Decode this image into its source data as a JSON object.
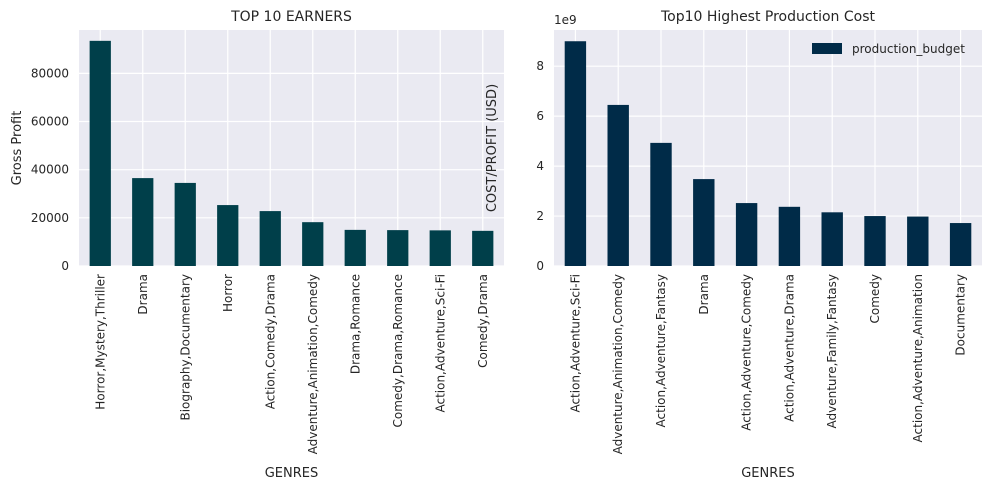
{
  "chart_data": [
    {
      "type": "bar",
      "title": "TOP 10 EARNERS",
      "xlabel": "GENRES",
      "ylabel": "Gross Profit",
      "categories": [
        "Horror,Mystery,Thriller",
        "Drama",
        "Biography,Documentary",
        "Horror",
        "Action,Comedy,Drama",
        "Adventure,Animation,Comedy",
        "Drama,Romance",
        "Comedy,Drama,Romance",
        "Action,Adventure,Sci-Fi",
        "Comedy,Drama"
      ],
      "values": [
        93500,
        36500,
        34500,
        25300,
        22800,
        18200,
        15000,
        14900,
        14800,
        14600
      ],
      "ylim": [
        0,
        98000
      ],
      "yticks": [
        0,
        20000,
        40000,
        60000,
        80000
      ],
      "ytick_labels": [
        "0",
        "20000",
        "40000",
        "60000",
        "80000"
      ],
      "color": "#003f4a",
      "grid": true,
      "legend": null
    },
    {
      "type": "bar",
      "title": "Top10 Highest Production Cost",
      "xlabel": "GENRES",
      "ylabel": "COST/PROFIT (USD)",
      "offset_text": "1e9",
      "categories": [
        "Action,Adventure,Sci-Fi",
        "Adventure,Animation,Comedy",
        "Action,Adventure,Fantasy",
        "Drama",
        "Action,Adventure,Comedy",
        "Action,Adventure,Drama",
        "Adventure,Family,Fantasy",
        "Comedy",
        "Action,Adventure,Animation",
        "Documentary"
      ],
      "series": [
        {
          "name": "production_budget",
          "values": [
            9.0,
            6.45,
            4.93,
            3.48,
            2.52,
            2.37,
            2.15,
            2.0,
            1.98,
            1.72
          ]
        }
      ],
      "ylim": [
        0,
        9.45
      ],
      "yticks": [
        0,
        2,
        4,
        6,
        8
      ],
      "ytick_labels": [
        "0",
        "2",
        "4",
        "6",
        "8"
      ],
      "color": "#002b48",
      "grid": true,
      "legend": "top-right"
    }
  ]
}
